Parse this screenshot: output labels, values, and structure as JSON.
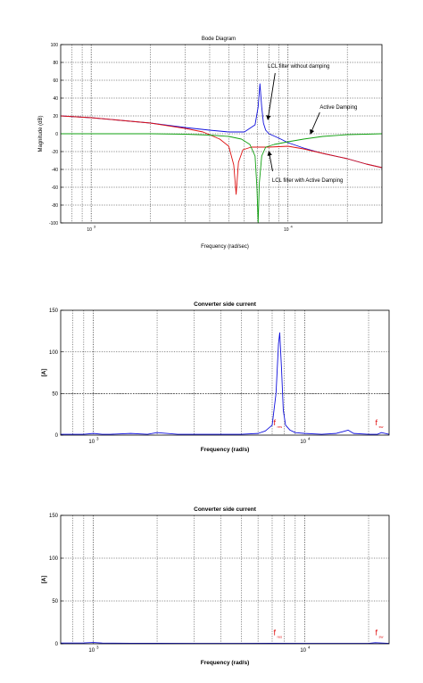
{
  "chart_data": [
    {
      "type": "line",
      "title": "Bode Diagram",
      "xlabel": "Frequency  (rad/sec)",
      "ylabel": "Magnitude (dB)",
      "x_scale": "log",
      "xlim": [
        700,
        30000
      ],
      "ylim": [
        -100,
        100
      ],
      "yticks": [
        -100,
        -80,
        -60,
        -40,
        -20,
        0,
        20,
        40,
        60,
        80,
        100
      ],
      "xtick_labels": [
        {
          "x": 1000,
          "base": "10",
          "exp": "3"
        },
        {
          "x": 10000,
          "base": "10",
          "exp": "4"
        }
      ],
      "grid": true,
      "series": [
        {
          "color": "#1010dd",
          "x": [
            700,
            1000,
            2000,
            3000,
            4000,
            5000,
            6000,
            6800,
            7050,
            7200,
            7350,
            7500,
            7700,
            8000,
            9000,
            10000,
            12000,
            15000,
            20000,
            25000,
            30000
          ],
          "y": [
            20,
            18,
            12,
            7,
            4,
            2,
            2,
            10,
            30,
            56,
            30,
            12,
            4,
            0,
            -5,
            -10,
            -16,
            -22,
            -28,
            -34,
            -38
          ]
        },
        {
          "color": "#dd1010",
          "x": [
            700,
            1000,
            2000,
            3000,
            3700,
            4500,
            5000,
            5300,
            5450,
            5600,
            5900,
            6500,
            7000,
            8000,
            10000,
            12000,
            15000,
            20000,
            25000,
            30000
          ],
          "y": [
            20,
            18,
            12,
            6,
            2,
            -6,
            -14,
            -35,
            -68,
            -32,
            -18,
            -15,
            -15,
            -15,
            -14,
            -17,
            -22,
            -28,
            -34,
            -38
          ]
        },
        {
          "color": "#10a010",
          "x": [
            700,
            2000,
            3000,
            4000,
            5000,
            5800,
            6400,
            6800,
            6950,
            7050,
            7150,
            7350,
            7700,
            8500,
            10000,
            12000,
            15000,
            20000,
            25000,
            30000
          ],
          "y": [
            0,
            0,
            -0.5,
            -1.5,
            -3,
            -6,
            -12,
            -25,
            -60,
            -100,
            -55,
            -25,
            -15,
            -12,
            -9,
            -6,
            -3,
            -1,
            -0.5,
            0
          ]
        }
      ],
      "annotations": [
        {
          "text": "LCL filter without damping",
          "x": 7900,
          "y": 74
        },
        {
          "text": "Active Damping",
          "x": 14500,
          "y": 28
        },
        {
          "text": "LCL filter with Active Damping",
          "x": 8300,
          "y": -54
        }
      ]
    },
    {
      "type": "line",
      "title": "Converter side current",
      "xlabel": "Frequency  (rad/s)",
      "ylabel": "[A]",
      "x_scale": "log",
      "xlim": [
        700,
        25000
      ],
      "ylim": [
        0,
        150
      ],
      "yticks": [
        0,
        50,
        100,
        150
      ],
      "xtick_labels": [
        {
          "x": 1000,
          "base": "10",
          "exp": "3"
        },
        {
          "x": 10000,
          "base": "10",
          "exp": "4"
        }
      ],
      "grid": true,
      "series": [
        {
          "color": "#1010dd",
          "x": [
            700,
            900,
            1000,
            1100,
            1200,
            1500,
            1800,
            2000,
            2500,
            3000,
            4000,
            5000,
            6000,
            6500,
            7000,
            7300,
            7500,
            7600,
            7750,
            7900,
            8100,
            8500,
            9000,
            10000,
            12000,
            14000,
            15000,
            16000,
            17000,
            20000,
            22000,
            23000,
            25000
          ],
          "y": [
            1,
            1,
            2,
            1,
            1,
            2,
            1,
            3,
            1,
            1,
            1,
            1,
            2,
            5,
            12,
            50,
            110,
            123,
            80,
            30,
            12,
            6,
            3,
            2,
            1,
            2,
            4,
            6,
            2,
            1,
            1,
            3,
            1
          ]
        }
      ],
      "annotations": [
        {
          "text": "f",
          "sub": "res",
          "x": 7100,
          "y": 12
        },
        {
          "text": "f",
          "sub": "sw",
          "x": 21500,
          "y": 12
        }
      ]
    },
    {
      "type": "line",
      "title": "Converter side current",
      "xlabel": "Frequency  (rad/s)",
      "ylabel": "[A]",
      "x_scale": "log",
      "xlim": [
        700,
        25000
      ],
      "ylim": [
        0,
        150
      ],
      "yticks": [
        0,
        50,
        100,
        150
      ],
      "xtick_labels": [
        {
          "x": 1000,
          "base": "10",
          "exp": "3"
        },
        {
          "x": 10000,
          "base": "10",
          "exp": "4"
        }
      ],
      "grid": true,
      "series": [
        {
          "color": "#1010dd",
          "x": [
            700,
            900,
            1000,
            1100,
            1500,
            2000,
            3000,
            5000,
            7000,
            10000,
            15000,
            20000,
            21500,
            25000
          ],
          "y": [
            0.8,
            1,
            1.5,
            0.8,
            0.6,
            0.6,
            0.5,
            0.5,
            0.6,
            0.5,
            0.5,
            0.5,
            1.2,
            0.5
          ]
        }
      ],
      "annotations": [
        {
          "text": "f",
          "sub": "res",
          "x": 7100,
          "y": 10
        },
        {
          "text": "f",
          "sub": "sw",
          "x": 21500,
          "y": 10
        }
      ]
    }
  ]
}
